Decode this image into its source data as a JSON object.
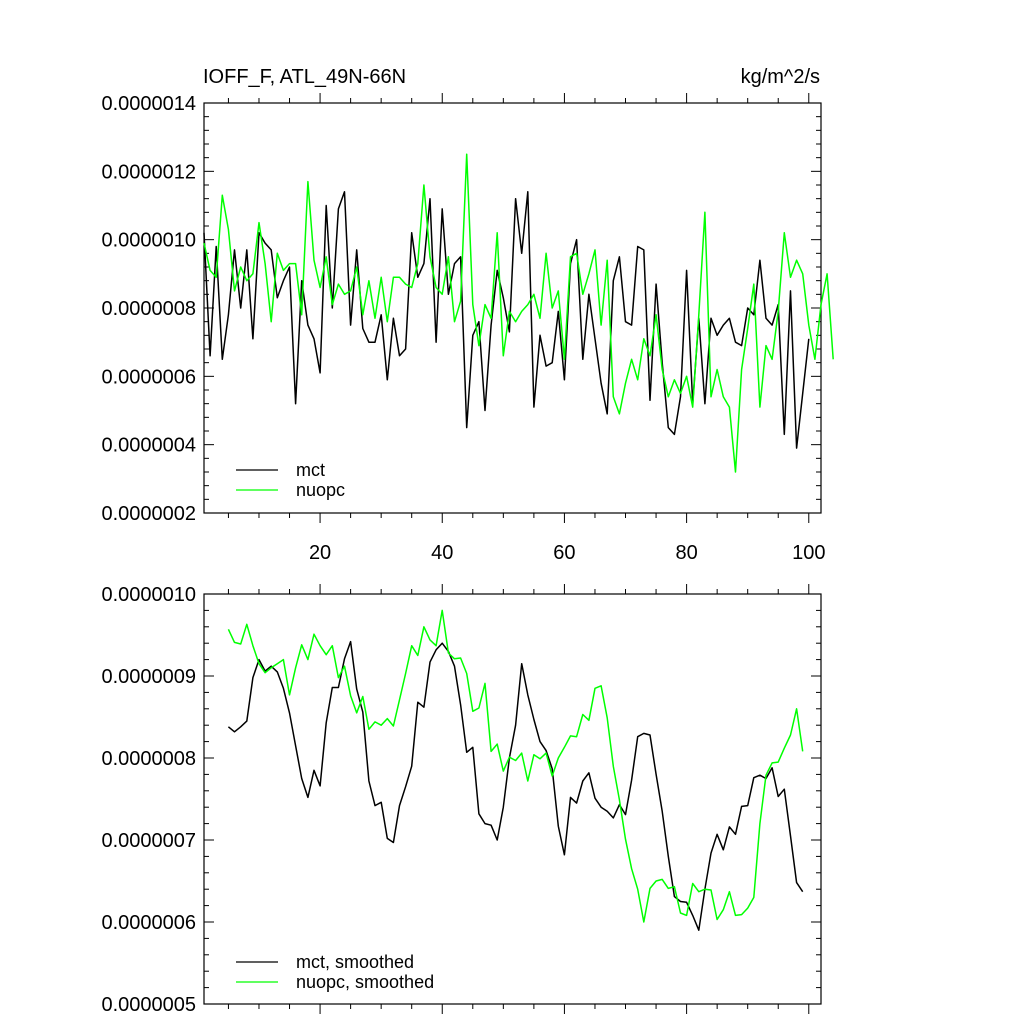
{
  "chart_data": [
    {
      "type": "line",
      "title": "IOFF_F, ATL_49N-66N",
      "units": "kg/m^2/s",
      "xlim": [
        1,
        102
      ],
      "ylim": [
        2e-07,
        1.4e-06
      ],
      "xticks": [
        20,
        40,
        60,
        80,
        100
      ],
      "yticks": [
        2e-07,
        4e-07,
        6e-07,
        8e-07,
        1e-06,
        1.2e-06,
        1.4e-06
      ],
      "ytick_labels": [
        "0.0000002",
        "0.0000004",
        "0.0000006",
        "0.0000008",
        "0.0000010",
        "0.0000012",
        "0.0000014"
      ],
      "xtick_labels": [
        "20",
        "40",
        "60",
        "80",
        "100"
      ],
      "legend": [
        "mct",
        "nuopc"
      ],
      "legend_position": "bottom-left",
      "series": [
        {
          "name": "mct",
          "color": "#000000",
          "x_start": 1,
          "values": [
            1.02e-06,
            6.6e-07,
            9.8e-07,
            6.5e-07,
            7.8e-07,
            9.7e-07,
            8e-07,
            9.7e-07,
            7.1e-07,
            1.02e-06,
            9.9e-07,
            9.7e-07,
            8.3e-07,
            8.8e-07,
            9.2e-07,
            5.2e-07,
            8.8e-07,
            7.5e-07,
            7.1e-07,
            6.1e-07,
            1.1e-06,
            8e-07,
            1.09e-06,
            1.14e-06,
            7.5e-07,
            9.7e-07,
            7.4e-07,
            7e-07,
            7e-07,
            7.8e-07,
            5.9e-07,
            7.7e-07,
            6.6e-07,
            6.8e-07,
            1.02e-06,
            8.9e-07,
            9.3e-07,
            1.12e-06,
            7e-07,
            1.09e-06,
            8.4e-07,
            9.3e-07,
            9.5e-07,
            4.5e-07,
            7.2e-07,
            7.6e-07,
            5e-07,
            7.5e-07,
            9.1e-07,
            8.3e-07,
            7.3e-07,
            1.12e-06,
            9.6e-07,
            1.14e-06,
            5.1e-07,
            7.2e-07,
            6.3e-07,
            6.4e-07,
            7.9e-07,
            5.9e-07,
            9.3e-07,
            1e-06,
            6.5e-07,
            8.4e-07,
            7.1e-07,
            5.8e-07,
            4.9e-07,
            8.8e-07,
            9.5e-07,
            7.6e-07,
            7.5e-07,
            9.8e-07,
            9.7e-07,
            5.3e-07,
            8.7e-07,
            6.4e-07,
            4.5e-07,
            4.3e-07,
            5.4e-07,
            9.1e-07,
            5.2e-07,
            7.7e-07,
            5.2e-07,
            7.7e-07,
            7.2e-07,
            7.5e-07,
            7.7e-07,
            7e-07,
            6.9e-07,
            8e-07,
            7.8e-07,
            9.4e-07,
            7.7e-07,
            7.5e-07,
            8.1e-07,
            4.3e-07,
            8.5e-07,
            3.9e-07,
            5.5e-07,
            7.1e-07
          ]
        },
        {
          "name": "nuopc",
          "color": "#00ff00",
          "x_start": 1,
          "values": [
            9.9e-07,
            9.1e-07,
            8.9e-07,
            1.13e-06,
            1.03e-06,
            8.5e-07,
            9.2e-07,
            8.8e-07,
            9e-07,
            1.05e-06,
            9.3e-07,
            7.6e-07,
            9.6e-07,
            9.1e-07,
            9.3e-07,
            9.3e-07,
            7.8e-07,
            1.17e-06,
            9.4e-07,
            8.6e-07,
            9.5e-07,
            8.1e-07,
            8.7e-07,
            8.4e-07,
            8.5e-07,
            9.2e-07,
            7.8e-07,
            8.8e-07,
            7.7e-07,
            8.9e-07,
            7.6e-07,
            8.9e-07,
            8.9e-07,
            8.7e-07,
            8.6e-07,
            9.3e-07,
            1.16e-06,
            9.5e-07,
            8.6e-07,
            8.4e-07,
            9.5e-07,
            7.6e-07,
            8.2e-07,
            1.25e-06,
            8.1e-07,
            6.9e-07,
            8.1e-07,
            7.7e-07,
            1.02e-06,
            6.6e-07,
            7.9e-07,
            7.6e-07,
            7.9e-07,
            8.1e-07,
            8.4e-07,
            7.7e-07,
            9.6e-07,
            8e-07,
            8.5e-07,
            6.5e-07,
            9.5e-07,
            9.6e-07,
            8.4e-07,
            9e-07,
            9.7e-07,
            7.5e-07,
            9.4e-07,
            5.4e-07,
            4.9e-07,
            5.8e-07,
            6.5e-07,
            5.9e-07,
            7.1e-07,
            6.6e-07,
            7.8e-07,
            6.2e-07,
            5.4e-07,
            5.9e-07,
            5.5e-07,
            6e-07,
            5.1e-07,
            7.8e-07,
            1.08e-06,
            5.4e-07,
            6.2e-07,
            5.4e-07,
            5.1e-07,
            3.2e-07,
            6.2e-07,
            7.4e-07,
            8.7e-07,
            5.1e-07,
            6.9e-07,
            6.5e-07,
            7.9e-07,
            1.02e-06,
            8.9e-07,
            9.4e-07,
            9e-07,
            7.5e-07,
            6.5e-07,
            8.1e-07,
            9e-07,
            6.5e-07
          ]
        }
      ]
    },
    {
      "type": "line",
      "title": "",
      "xlim": [
        1,
        102
      ],
      "ylim": [
        5e-07,
        1e-06
      ],
      "xticks": [
        20,
        40,
        60,
        80,
        100
      ],
      "yticks": [
        5e-07,
        6e-07,
        7e-07,
        8e-07,
        9e-07,
        1e-06
      ],
      "ytick_labels": [
        "0.0000005",
        "0.0000006",
        "0.0000007",
        "0.0000008",
        "0.0000009",
        "0.0000010"
      ],
      "legend": [
        "mct, smoothed",
        "nuopc, smoothed"
      ],
      "legend_position": "bottom-left",
      "series": [
        {
          "name": "mct, smoothed",
          "color": "#000000",
          "x_start": 5,
          "values": [
            8.38e-07,
            8.32e-07,
            8.38e-07,
            8.45e-07,
            8.98e-07,
            9.2e-07,
            9.06e-07,
            9.12e-07,
            9.05e-07,
            8.85e-07,
            8.55e-07,
            8.15e-07,
            7.75e-07,
            7.52e-07,
            7.85e-07,
            7.66e-07,
            8.43e-07,
            8.86e-07,
            8.86e-07,
            9.21e-07,
            9.42e-07,
            8.84e-07,
            8.56e-07,
            7.72e-07,
            7.42e-07,
            7.46e-07,
            7.02e-07,
            6.97e-07,
            7.42e-07,
            7.65e-07,
            7.9e-07,
            8.68e-07,
            8.62e-07,
            9.17e-07,
            9.32e-07,
            9.4e-07,
            9.3e-07,
            9.12e-07,
            8.65e-07,
            8.07e-07,
            8.13e-07,
            7.32e-07,
            7.2e-07,
            7.18e-07,
            7e-07,
            7.4e-07,
            8e-07,
            8.4e-07,
            9.15e-07,
            8.77e-07,
            8.47e-07,
            8.2e-07,
            8.09e-07,
            7.87e-07,
            7.17e-07,
            6.82e-07,
            7.52e-07,
            7.45e-07,
            7.72e-07,
            7.82e-07,
            7.51e-07,
            7.4e-07,
            7.35e-07,
            7.27e-07,
            7.43e-07,
            7.31e-07,
            7.73e-07,
            8.26e-07,
            8.3e-07,
            8.28e-07,
            7.8e-07,
            7.35e-07,
            6.8e-07,
            6.31e-07,
            6.25e-07,
            6.24e-07,
            6.08e-07,
            5.9e-07,
            6.4e-07,
            6.84e-07,
            7.07e-07,
            6.88e-07,
            7.16e-07,
            7.07e-07,
            7.41e-07,
            7.42e-07,
            7.76e-07,
            7.79e-07,
            7.75e-07,
            7.88e-07,
            7.53e-07,
            7.62e-07,
            7.05e-07,
            6.48e-07,
            6.37e-07
          ]
        },
        {
          "name": "nuopc, smoothed",
          "color": "#00ff00",
          "x_start": 5,
          "values": [
            9.57e-07,
            9.41e-07,
            9.39e-07,
            9.63e-07,
            9.37e-07,
            9.15e-07,
            9.04e-07,
            9.1e-07,
            9.15e-07,
            9.2e-07,
            8.77e-07,
            9.1e-07,
            9.38e-07,
            9.2e-07,
            9.51e-07,
            9.37e-07,
            9.26e-07,
            9.37e-07,
            8.98e-07,
            9.12e-07,
            8.76e-07,
            8.55e-07,
            8.75e-07,
            8.35e-07,
            8.44e-07,
            8.4e-07,
            8.48e-07,
            8.39e-07,
            8.71e-07,
            9.03e-07,
            9.37e-07,
            9.25e-07,
            9.6e-07,
            9.44e-07,
            9.37e-07,
            9.8e-07,
            9.28e-07,
            9.21e-07,
            9.22e-07,
            9.03e-07,
            8.57e-07,
            8.61e-07,
            8.91e-07,
            8.08e-07,
            8.17e-07,
            7.84e-07,
            8.01e-07,
            7.97e-07,
            8.06e-07,
            7.72e-07,
            8.04e-07,
            7.99e-07,
            8.06e-07,
            7.78e-07,
            8e-07,
            8.13e-07,
            8.27e-07,
            8.26e-07,
            8.53e-07,
            8.46e-07,
            8.85e-07,
            8.88e-07,
            8.49e-07,
            7.9e-07,
            7.49e-07,
            7.01e-07,
            6.65e-07,
            6.4e-07,
            6e-07,
            6.41e-07,
            6.5e-07,
            6.52e-07,
            6.41e-07,
            6.43e-07,
            6.11e-07,
            6.08e-07,
            6.47e-07,
            6.37e-07,
            6.4e-07,
            6.39e-07,
            6.03e-07,
            6.15e-07,
            6.37e-07,
            6.08e-07,
            6.09e-07,
            6.17e-07,
            6.3e-07,
            7.2e-07,
            7.79e-07,
            7.94e-07,
            7.95e-07,
            8.12e-07,
            8.28e-07,
            8.6e-07,
            8.08e-07
          ]
        }
      ]
    }
  ]
}
